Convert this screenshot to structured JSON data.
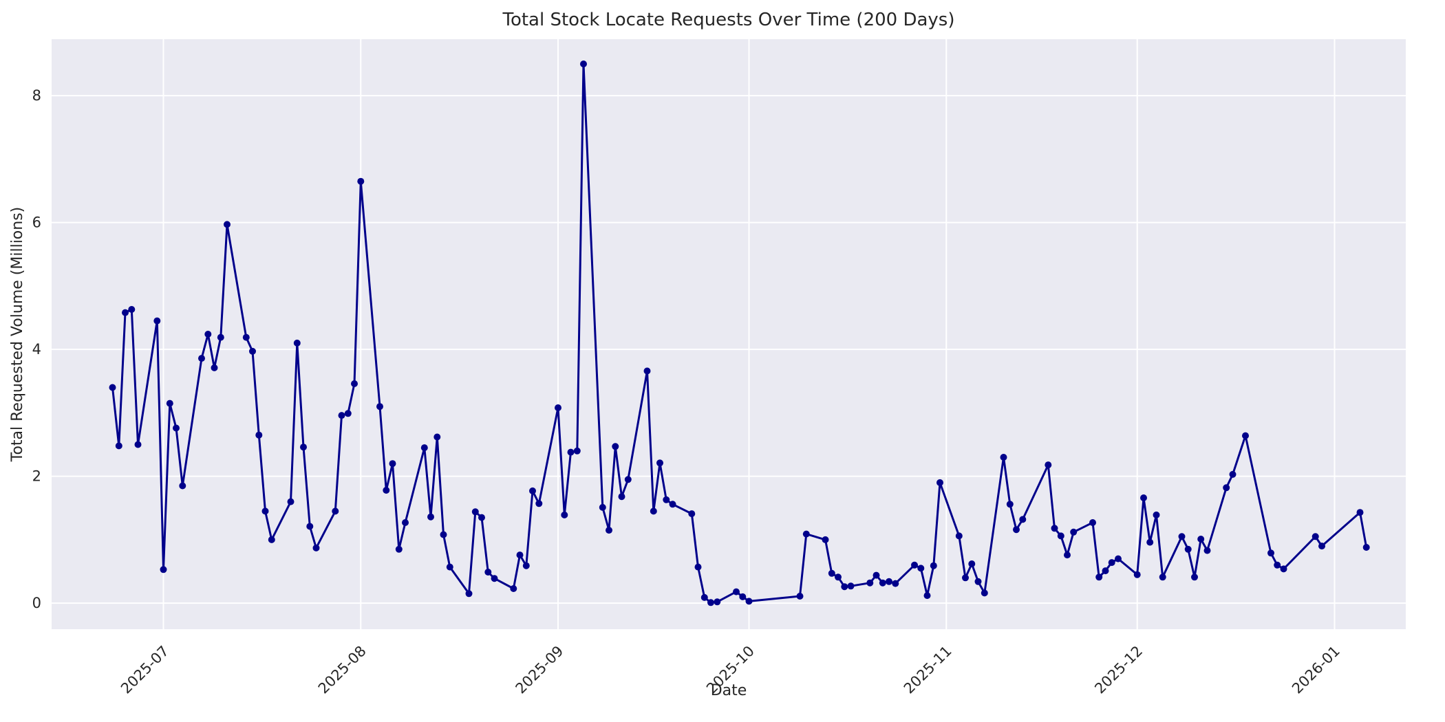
{
  "figure": {
    "title": "Total Stock Locate Requests Over Time (200 Days)",
    "xlabel": "Date",
    "ylabel": "Total Requested Volume (Millions)"
  },
  "chart_data": {
    "type": "line",
    "title": "Total Stock Locate Requests Over Time (200 Days)",
    "xlabel": "Date",
    "ylabel": "Total Requested Volume (Millions)",
    "grid": true,
    "legend": "none",
    "style": "seaborn-darkgrid",
    "plot_bg_color": "#eaeaf2",
    "grid_color": "#ffffff",
    "line_color": "#00008b",
    "text_color": "#262626",
    "y_ticks": [
      0,
      2,
      4,
      6,
      8
    ],
    "ylim": [
      -0.41,
      8.89
    ],
    "x_epoch": "2025-07-01",
    "xlim_days": [
      -17.57,
      195.19
    ],
    "x_tick_labels": [
      "2025-07",
      "2025-08",
      "2025-09",
      "2025-10",
      "2025-11",
      "2025-12",
      "2026-01"
    ],
    "x_tick_dates": [
      "2025-07-01",
      "2025-08-01",
      "2025-09-01",
      "2025-10-01",
      "2025-11-01",
      "2025-12-01",
      "2026-01-01"
    ],
    "series_name": "Total Requested Volume",
    "points": [
      {
        "date": "2025-06-23",
        "value": 3.4
      },
      {
        "date": "2025-06-24",
        "value": 2.48
      },
      {
        "date": "2025-06-25",
        "value": 4.58
      },
      {
        "date": "2025-06-26",
        "value": 4.63
      },
      {
        "date": "2025-06-27",
        "value": 2.5
      },
      {
        "date": "2025-06-30",
        "value": 4.45
      },
      {
        "date": "2025-07-01",
        "value": 0.53
      },
      {
        "date": "2025-07-02",
        "value": 3.15
      },
      {
        "date": "2025-07-03",
        "value": 2.76
      },
      {
        "date": "2025-07-04",
        "value": 1.85
      },
      {
        "date": "2025-07-07",
        "value": 3.86
      },
      {
        "date": "2025-07-08",
        "value": 4.24
      },
      {
        "date": "2025-07-09",
        "value": 3.71
      },
      {
        "date": "2025-07-10",
        "value": 4.19
      },
      {
        "date": "2025-07-11",
        "value": 5.97
      },
      {
        "date": "2025-07-14",
        "value": 4.19
      },
      {
        "date": "2025-07-15",
        "value": 3.97
      },
      {
        "date": "2025-07-16",
        "value": 2.65
      },
      {
        "date": "2025-07-17",
        "value": 1.45
      },
      {
        "date": "2025-07-18",
        "value": 1.0
      },
      {
        "date": "2025-07-21",
        "value": 1.6
      },
      {
        "date": "2025-07-22",
        "value": 4.1
      },
      {
        "date": "2025-07-23",
        "value": 2.46
      },
      {
        "date": "2025-07-24",
        "value": 1.21
      },
      {
        "date": "2025-07-25",
        "value": 0.87
      },
      {
        "date": "2025-07-28",
        "value": 1.45
      },
      {
        "date": "2025-07-29",
        "value": 2.96
      },
      {
        "date": "2025-07-30",
        "value": 2.99
      },
      {
        "date": "2025-07-31",
        "value": 3.46
      },
      {
        "date": "2025-08-01",
        "value": 6.65
      },
      {
        "date": "2025-08-04",
        "value": 3.1
      },
      {
        "date": "2025-08-05",
        "value": 1.78
      },
      {
        "date": "2025-08-06",
        "value": 2.2
      },
      {
        "date": "2025-08-07",
        "value": 0.85
      },
      {
        "date": "2025-08-08",
        "value": 1.27
      },
      {
        "date": "2025-08-11",
        "value": 2.45
      },
      {
        "date": "2025-08-12",
        "value": 1.36
      },
      {
        "date": "2025-08-13",
        "value": 2.62
      },
      {
        "date": "2025-08-14",
        "value": 1.08
      },
      {
        "date": "2025-08-15",
        "value": 0.57
      },
      {
        "date": "2025-08-18",
        "value": 0.15
      },
      {
        "date": "2025-08-19",
        "value": 1.44
      },
      {
        "date": "2025-08-20",
        "value": 1.35
      },
      {
        "date": "2025-08-21",
        "value": 0.49
      },
      {
        "date": "2025-08-22",
        "value": 0.39
      },
      {
        "date": "2025-08-25",
        "value": 0.23
      },
      {
        "date": "2025-08-26",
        "value": 0.76
      },
      {
        "date": "2025-08-27",
        "value": 0.59
      },
      {
        "date": "2025-08-28",
        "value": 1.77
      },
      {
        "date": "2025-08-29",
        "value": 1.57
      },
      {
        "date": "2025-09-01",
        "value": 3.08
      },
      {
        "date": "2025-09-02",
        "value": 1.39
      },
      {
        "date": "2025-09-03",
        "value": 2.38
      },
      {
        "date": "2025-09-04",
        "value": 2.4
      },
      {
        "date": "2025-09-05",
        "value": 8.5
      },
      {
        "date": "2025-09-08",
        "value": 1.51
      },
      {
        "date": "2025-09-09",
        "value": 1.15
      },
      {
        "date": "2025-09-10",
        "value": 2.47
      },
      {
        "date": "2025-09-11",
        "value": 1.68
      },
      {
        "date": "2025-09-12",
        "value": 1.95
      },
      {
        "date": "2025-09-15",
        "value": 3.66
      },
      {
        "date": "2025-09-16",
        "value": 1.45
      },
      {
        "date": "2025-09-17",
        "value": 2.21
      },
      {
        "date": "2025-09-18",
        "value": 1.63
      },
      {
        "date": "2025-09-19",
        "value": 1.56
      },
      {
        "date": "2025-09-22",
        "value": 1.41
      },
      {
        "date": "2025-09-23",
        "value": 0.57
      },
      {
        "date": "2025-09-24",
        "value": 0.09
      },
      {
        "date": "2025-09-25",
        "value": 0.01
      },
      {
        "date": "2025-09-26",
        "value": 0.02
      },
      {
        "date": "2025-09-29",
        "value": 0.18
      },
      {
        "date": "2025-09-30",
        "value": 0.1
      },
      {
        "date": "2025-10-01",
        "value": 0.03
      },
      {
        "date": "2025-10-09",
        "value": 0.11
      },
      {
        "date": "2025-10-10",
        "value": 1.09
      },
      {
        "date": "2025-10-13",
        "value": 1.0
      },
      {
        "date": "2025-10-14",
        "value": 0.47
      },
      {
        "date": "2025-10-15",
        "value": 0.41
      },
      {
        "date": "2025-10-16",
        "value": 0.26
      },
      {
        "date": "2025-10-17",
        "value": 0.27
      },
      {
        "date": "2025-10-20",
        "value": 0.32
      },
      {
        "date": "2025-10-21",
        "value": 0.44
      },
      {
        "date": "2025-10-22",
        "value": 0.32
      },
      {
        "date": "2025-10-23",
        "value": 0.34
      },
      {
        "date": "2025-10-24",
        "value": 0.31
      },
      {
        "date": "2025-10-27",
        "value": 0.6
      },
      {
        "date": "2025-10-28",
        "value": 0.55
      },
      {
        "date": "2025-10-29",
        "value": 0.12
      },
      {
        "date": "2025-10-30",
        "value": 0.59
      },
      {
        "date": "2025-10-31",
        "value": 1.9
      },
      {
        "date": "2025-11-03",
        "value": 1.06
      },
      {
        "date": "2025-11-04",
        "value": 0.4
      },
      {
        "date": "2025-11-05",
        "value": 0.62
      },
      {
        "date": "2025-11-06",
        "value": 0.34
      },
      {
        "date": "2025-11-07",
        "value": 0.16
      },
      {
        "date": "2025-11-10",
        "value": 2.3
      },
      {
        "date": "2025-11-11",
        "value": 1.56
      },
      {
        "date": "2025-11-12",
        "value": 1.16
      },
      {
        "date": "2025-11-13",
        "value": 1.32
      },
      {
        "date": "2025-11-17",
        "value": 2.18
      },
      {
        "date": "2025-11-18",
        "value": 1.18
      },
      {
        "date": "2025-11-19",
        "value": 1.06
      },
      {
        "date": "2025-11-20",
        "value": 0.76
      },
      {
        "date": "2025-11-21",
        "value": 1.12
      },
      {
        "date": "2025-11-24",
        "value": 1.27
      },
      {
        "date": "2025-11-25",
        "value": 0.41
      },
      {
        "date": "2025-11-26",
        "value": 0.51
      },
      {
        "date": "2025-11-27",
        "value": 0.64
      },
      {
        "date": "2025-11-28",
        "value": 0.7
      },
      {
        "date": "2025-12-01",
        "value": 0.45
      },
      {
        "date": "2025-12-02",
        "value": 1.66
      },
      {
        "date": "2025-12-03",
        "value": 0.96
      },
      {
        "date": "2025-12-04",
        "value": 1.39
      },
      {
        "date": "2025-12-05",
        "value": 0.41
      },
      {
        "date": "2025-12-08",
        "value": 1.05
      },
      {
        "date": "2025-12-09",
        "value": 0.85
      },
      {
        "date": "2025-12-10",
        "value": 0.41
      },
      {
        "date": "2025-12-11",
        "value": 1.01
      },
      {
        "date": "2025-12-12",
        "value": 0.83
      },
      {
        "date": "2025-12-15",
        "value": 1.82
      },
      {
        "date": "2025-12-16",
        "value": 2.03
      },
      {
        "date": "2025-12-18",
        "value": 2.64
      },
      {
        "date": "2025-12-22",
        "value": 0.79
      },
      {
        "date": "2025-12-23",
        "value": 0.6
      },
      {
        "date": "2025-12-24",
        "value": 0.54
      },
      {
        "date": "2025-12-29",
        "value": 1.05
      },
      {
        "date": "2025-12-30",
        "value": 0.9
      },
      {
        "date": "2026-01-05",
        "value": 1.43
      },
      {
        "date": "2026-01-06",
        "value": 0.88
      }
    ]
  }
}
